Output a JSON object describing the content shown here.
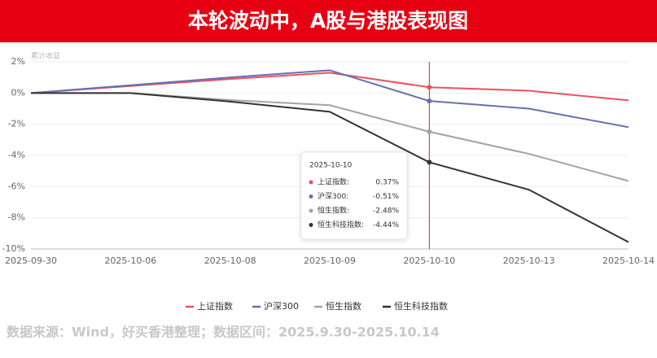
{
  "header": {
    "title": "本轮波动中，A股与港股表现图"
  },
  "chart_data": {
    "type": "line",
    "y_axis_label": "累计收益",
    "categories": [
      "2025-09-30",
      "2025-10-06",
      "2025-10-08",
      "2025-10-09",
      "2025-10-10",
      "2025-10-13",
      "2025-10-14"
    ],
    "series": [
      {
        "name": "上证指数",
        "color": "#e9525c",
        "values": [
          0,
          0.45,
          0.9,
          1.3,
          0.37,
          0.15,
          -0.47
        ]
      },
      {
        "name": "沪深300",
        "color": "#6670b0",
        "values": [
          0,
          0.5,
          1.0,
          1.46,
          -0.51,
          -1.0,
          -2.19
        ]
      },
      {
        "name": "恒生指数",
        "color": "#a3a3a3",
        "values": [
          0,
          0,
          -0.45,
          -0.78,
          -2.48,
          -3.9,
          -5.64
        ]
      },
      {
        "name": "恒生科技指数",
        "color": "#333333",
        "values": [
          0,
          0,
          -0.55,
          -1.2,
          -4.44,
          -6.2,
          -9.56
        ]
      }
    ],
    "ylim": [
      -10,
      2
    ],
    "yticks": [
      {
        "value": 2,
        "label": "2%"
      },
      {
        "value": 0,
        "label": "0%"
      },
      {
        "value": -2,
        "label": "-2%"
      },
      {
        "value": -4,
        "label": "-4%"
      },
      {
        "value": -6,
        "label": "-6%"
      },
      {
        "value": -8,
        "label": "-8%"
      },
      {
        "value": -10,
        "label": "-10%"
      }
    ],
    "grid": true,
    "tooltip": {
      "rows": [
        {
          "label": "上证指数:",
          "value": "0.37%"
        },
        {
          "label": "沪深300:",
          "value": "-0.51%"
        },
        {
          "label": "恒生指数:",
          "value": "-2.48%"
        },
        {
          "label": "恒生科技指数:",
          "value": "-4.44%"
        }
      ]
    }
  },
  "footer": {
    "source": "数据来源：Wind，好买香港整理；数据区间：2025.9.30-2025.10.14"
  }
}
